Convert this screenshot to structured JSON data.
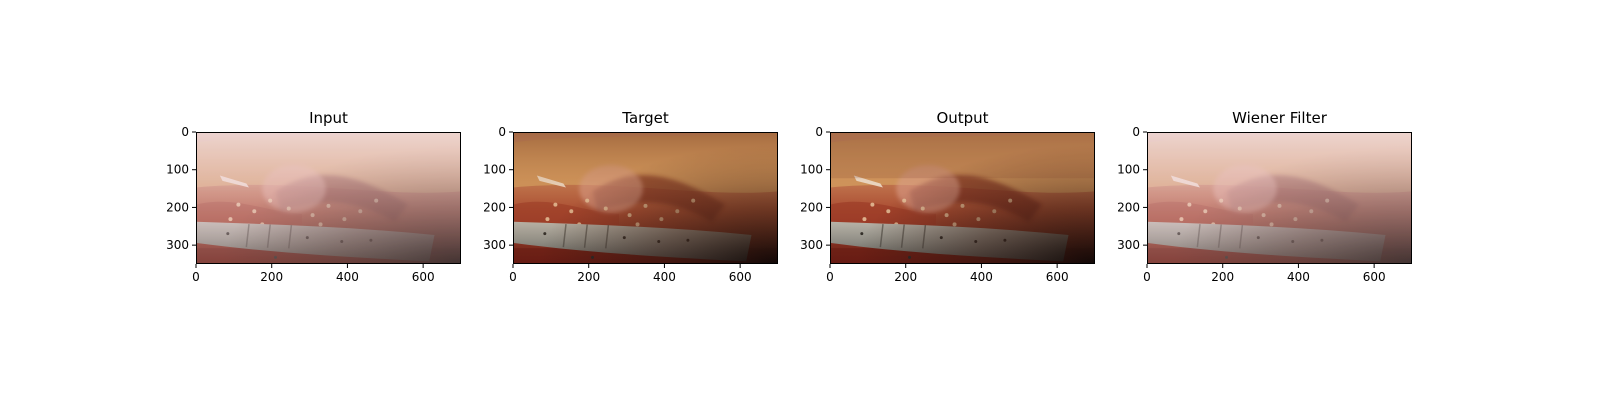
{
  "figure": {
    "panels": [
      {
        "id": "input",
        "title": "Input",
        "image_desc": "laparoscopic surgical scene, washed-out hazy version",
        "variant": "hazy",
        "x_ticks": [
          "0",
          "200",
          "400",
          "600"
        ],
        "y_ticks": [
          "0",
          "100",
          "200",
          "300"
        ]
      },
      {
        "id": "target",
        "title": "Target",
        "image_desc": "laparoscopic surgical scene, clear version",
        "variant": "clear",
        "x_ticks": [
          "0",
          "200",
          "400",
          "600"
        ],
        "y_ticks": [
          "0",
          "100",
          "200",
          "300"
        ]
      },
      {
        "id": "output",
        "title": "Output",
        "image_desc": "laparoscopic surgical scene, restored version",
        "variant": "restored",
        "x_ticks": [
          "0",
          "200",
          "400",
          "600"
        ],
        "y_ticks": [
          "0",
          "100",
          "200",
          "300"
        ]
      },
      {
        "id": "wiener",
        "title": "Wiener Filter",
        "image_desc": "laparoscopic surgical scene, Wiener-filtered hazy version",
        "variant": "hazy",
        "x_ticks": [
          "0",
          "200",
          "400",
          "600"
        ],
        "y_ticks": [
          "0",
          "100",
          "200",
          "300"
        ]
      }
    ],
    "image_extent": {
      "x_max": 700,
      "y_max": 350
    },
    "palette": {
      "tissue_red": "#8c2a1f",
      "tissue_orange": "#c9744a",
      "fat_yellow": "#d8a55c",
      "haze_pink": "#e9c9cc",
      "instrument_gray": "#8e8f8a",
      "shadow_dark": "#1e120f"
    }
  }
}
